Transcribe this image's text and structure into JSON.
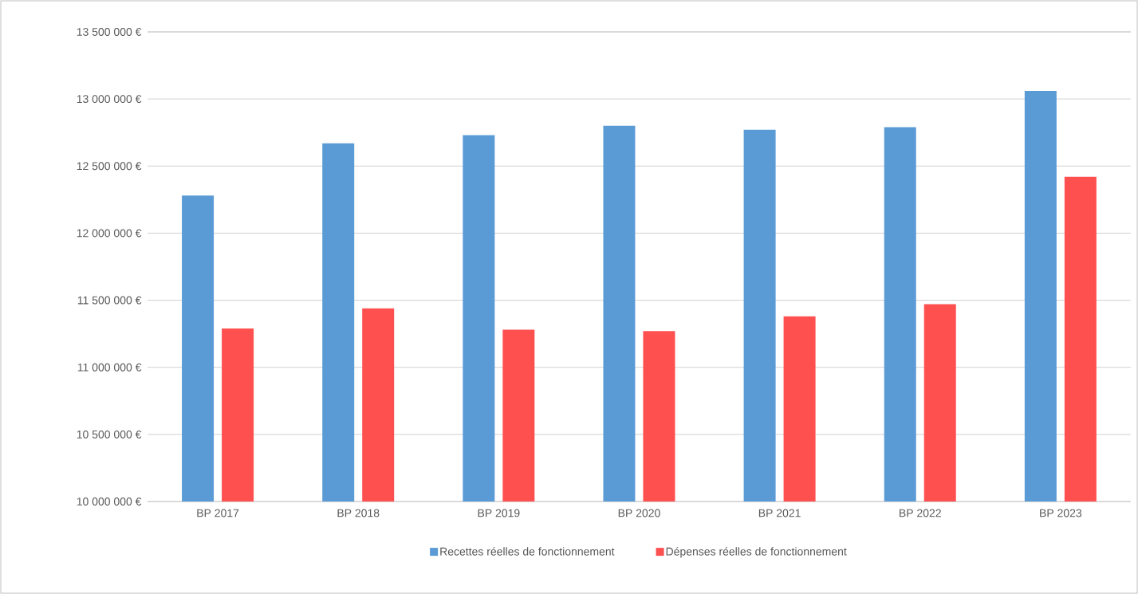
{
  "chart_data": {
    "type": "bar",
    "categories": [
      "BP 2017",
      "BP 2018",
      "BP 2019",
      "BP 2020",
      "BP 2021",
      "BP 2022",
      "BP 2023"
    ],
    "series": [
      {
        "name": "Recettes réelles de fonctionnement",
        "color": "#5b9bd5",
        "values": [
          12280000,
          12670000,
          12730000,
          12800000,
          12770000,
          12790000,
          13060000
        ]
      },
      {
        "name": "Dépenses réelles de fonctionnement",
        "color": "#ff5050",
        "values": [
          11290000,
          11440000,
          11280000,
          11270000,
          11380000,
          11470000,
          12420000
        ]
      }
    ],
    "ylim": [
      10000000,
      13500000
    ],
    "yticks": [
      {
        "value": 10000000,
        "label": "10 000 000 €"
      },
      {
        "value": 10500000,
        "label": "10 500 000 €"
      },
      {
        "value": 11000000,
        "label": "11 000 000 €"
      },
      {
        "value": 11500000,
        "label": "11 500 000 €"
      },
      {
        "value": 12000000,
        "label": "12 000 000 €"
      },
      {
        "value": 12500000,
        "label": "12 500 000 €"
      },
      {
        "value": 13000000,
        "label": "13 000 000 €"
      },
      {
        "value": 13500000,
        "label": "13 500 000 €"
      }
    ],
    "grid": "y",
    "legend": "bottom"
  }
}
